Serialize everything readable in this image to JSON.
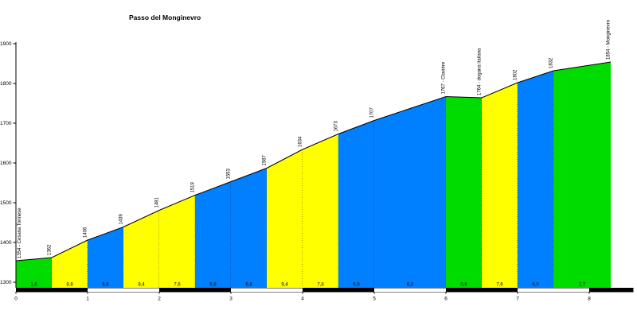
{
  "page": {
    "background": "#ffffff"
  },
  "chart_data": {
    "type": "area",
    "title": "Passo del Monginevro",
    "xlabel": "",
    "ylabel": "",
    "x_unit": "km",
    "y_unit": "m",
    "ylim": [
      1300,
      1900
    ],
    "xlim": [
      0,
      8.3
    ],
    "yticks": [
      1300,
      1400,
      1500,
      1600,
      1700,
      1800,
      1900
    ],
    "xticks": [
      0,
      1,
      2,
      3,
      4,
      5,
      6,
      7,
      8
    ],
    "grid": false,
    "legend": false,
    "start_point": {
      "km": 0,
      "elevation": 1354,
      "label": "1354 - Cesana Torinese"
    },
    "segments": [
      {
        "km_start": 0.0,
        "km_end": 0.5,
        "elev_start": 1354,
        "elev_end": 1362,
        "gradient_label": "1,6",
        "color": "green",
        "elev_label": "1362"
      },
      {
        "km_start": 0.5,
        "km_end": 1.0,
        "elev_start": 1362,
        "elev_end": 1406,
        "gradient_label": "8,8",
        "color": "yellow",
        "elev_label": "1406"
      },
      {
        "km_start": 1.0,
        "km_end": 1.5,
        "elev_start": 1406,
        "elev_end": 1439,
        "gradient_label": "6,6",
        "color": "blue",
        "elev_label": "1439"
      },
      {
        "km_start": 1.5,
        "km_end": 2.0,
        "elev_start": 1439,
        "elev_end": 1481,
        "gradient_label": "8,4",
        "color": "yellow",
        "elev_label": "1481"
      },
      {
        "km_start": 2.0,
        "km_end": 2.5,
        "elev_start": 1481,
        "elev_end": 1519,
        "gradient_label": "7,6",
        "color": "yellow",
        "elev_label": "1519"
      },
      {
        "km_start": 2.5,
        "km_end": 3.0,
        "elev_start": 1519,
        "elev_end": 1553,
        "gradient_label": "6,8",
        "color": "blue",
        "elev_label": "1553"
      },
      {
        "km_start": 3.0,
        "km_end": 3.5,
        "elev_start": 1553,
        "elev_end": 1587,
        "gradient_label": "6,8",
        "color": "blue",
        "elev_label": "1587"
      },
      {
        "km_start": 3.5,
        "km_end": 4.0,
        "elev_start": 1587,
        "elev_end": 1634,
        "gradient_label": "9,4",
        "color": "yellow",
        "elev_label": "1634"
      },
      {
        "km_start": 4.0,
        "km_end": 4.5,
        "elev_start": 1634,
        "elev_end": 1673,
        "gradient_label": "7,8",
        "color": "yellow",
        "elev_label": "1673"
      },
      {
        "km_start": 4.5,
        "km_end": 5.0,
        "elev_start": 1673,
        "elev_end": 1707,
        "gradient_label": "6,8",
        "color": "blue",
        "elev_label": "1707"
      },
      {
        "km_start": 5.0,
        "km_end": 6.0,
        "elev_start": 1707,
        "elev_end": 1767,
        "gradient_label": "6,0",
        "color": "blue",
        "elev_label": "1767 - Clavière"
      },
      {
        "km_start": 6.0,
        "km_end": 6.5,
        "elev_start": 1767,
        "elev_end": 1764,
        "gradient_label": "0,6",
        "color": "green",
        "elev_label": "1764 - dogana italiana"
      },
      {
        "km_start": 6.5,
        "km_end": 7.0,
        "elev_start": 1764,
        "elev_end": 1802,
        "gradient_label": "7,6",
        "color": "yellow",
        "elev_label": "1802"
      },
      {
        "km_start": 7.0,
        "km_end": 7.5,
        "elev_start": 1802,
        "elev_end": 1832,
        "gradient_label": "6,0",
        "color": "blue",
        "elev_label": "1832"
      },
      {
        "km_start": 7.5,
        "km_end": 8.3,
        "elev_start": 1832,
        "elev_end": 1854,
        "gradient_label": "2,7",
        "color": "green",
        "elev_label": "1854 - Monginevro"
      }
    ],
    "colors": {
      "green": "#00dc00",
      "yellow": "#ffff00",
      "blue": "#0080ff",
      "line": "#000000",
      "band_black": "#000000",
      "band_white": "#ffffff"
    }
  }
}
